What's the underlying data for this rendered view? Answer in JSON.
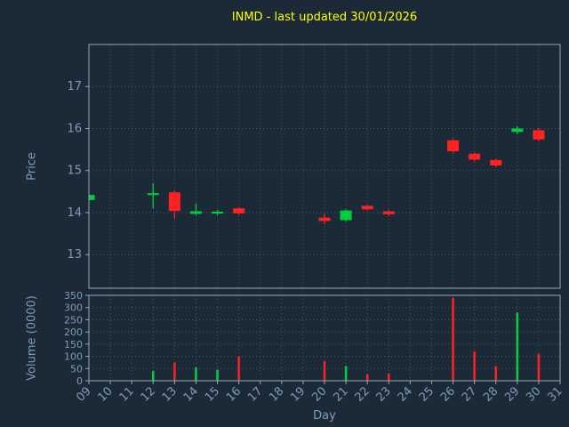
{
  "colors": {
    "background": "#1c2a38",
    "title": "#ffff00",
    "tick": "#7d9cbe",
    "grid": "#46586c",
    "axis": "#94a8bc",
    "up": "#00d040",
    "down": "#ff2222"
  },
  "chart_data": [
    {
      "type": "candlestick",
      "title": "INMD - last updated 30/01/2026",
      "xlabel": "Day",
      "ylabel": "Price",
      "x_range": [
        9,
        31
      ],
      "x_ticks": [
        "09",
        "10",
        "11",
        "12",
        "13",
        "14",
        "15",
        "16",
        "17",
        "18",
        "19",
        "20",
        "21",
        "22",
        "23",
        "24",
        "25",
        "26",
        "27",
        "28",
        "29",
        "30",
        "31"
      ],
      "ylim": [
        12.2,
        18.0
      ],
      "y_ticks": [
        13,
        14,
        15,
        16,
        17
      ],
      "grid": "dotted",
      "candles": [
        {
          "day": 9,
          "open": 14.3,
          "high": 14.44,
          "low": 14.28,
          "close": 14.42
        },
        {
          "day": 12,
          "open": 14.42,
          "high": 14.7,
          "low": 14.1,
          "close": 14.46
        },
        {
          "day": 13,
          "open": 14.48,
          "high": 14.52,
          "low": 13.86,
          "close": 14.04
        },
        {
          "day": 14,
          "open": 13.97,
          "high": 14.22,
          "low": 13.94,
          "close": 14.03
        },
        {
          "day": 15,
          "open": 13.98,
          "high": 14.06,
          "low": 13.94,
          "close": 14.02
        },
        {
          "day": 16,
          "open": 14.1,
          "high": 14.13,
          "low": 13.95,
          "close": 13.98
        },
        {
          "day": 20,
          "open": 13.88,
          "high": 13.97,
          "low": 13.73,
          "close": 13.8
        },
        {
          "day": 21,
          "open": 13.82,
          "high": 14.08,
          "low": 13.79,
          "close": 14.05
        },
        {
          "day": 22,
          "open": 14.16,
          "high": 14.19,
          "low": 14.05,
          "close": 14.08
        },
        {
          "day": 23,
          "open": 14.03,
          "high": 14.06,
          "low": 13.92,
          "close": 13.96
        },
        {
          "day": 26,
          "open": 15.72,
          "high": 15.76,
          "low": 15.42,
          "close": 15.46
        },
        {
          "day": 27,
          "open": 15.4,
          "high": 15.43,
          "low": 15.22,
          "close": 15.26
        },
        {
          "day": 28,
          "open": 15.25,
          "high": 15.28,
          "low": 15.08,
          "close": 15.12
        },
        {
          "day": 29,
          "open": 15.92,
          "high": 16.06,
          "low": 15.87,
          "close": 16.0
        },
        {
          "day": 30,
          "open": 15.96,
          "high": 16.01,
          "low": 15.7,
          "close": 15.74
        }
      ]
    },
    {
      "type": "bar",
      "ylabel": "Volume (0000)",
      "ylim": [
        0,
        350
      ],
      "y_ticks": [
        0,
        50,
        100,
        150,
        200,
        250,
        300,
        350
      ],
      "grid": "dotted",
      "bars": [
        {
          "day": 12,
          "value": 40,
          "direction": "up"
        },
        {
          "day": 13,
          "value": 75,
          "direction": "down"
        },
        {
          "day": 14,
          "value": 55,
          "direction": "up"
        },
        {
          "day": 15,
          "value": 45,
          "direction": "up"
        },
        {
          "day": 16,
          "value": 100,
          "direction": "down"
        },
        {
          "day": 20,
          "value": 80,
          "direction": "down"
        },
        {
          "day": 21,
          "value": 60,
          "direction": "up"
        },
        {
          "day": 22,
          "value": 25,
          "direction": "down"
        },
        {
          "day": 23,
          "value": 30,
          "direction": "down"
        },
        {
          "day": 26,
          "value": 340,
          "direction": "down"
        },
        {
          "day": 27,
          "value": 120,
          "direction": "down"
        },
        {
          "day": 28,
          "value": 60,
          "direction": "down"
        },
        {
          "day": 29,
          "value": 280,
          "direction": "up"
        },
        {
          "day": 30,
          "value": 110,
          "direction": "down"
        }
      ]
    }
  ]
}
